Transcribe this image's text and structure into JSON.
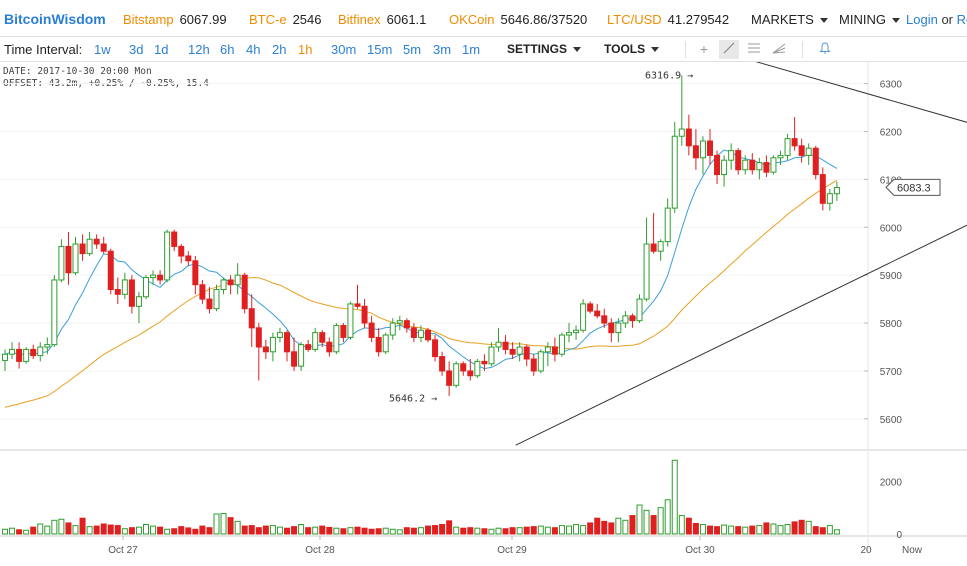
{
  "header": {
    "brand": "BitcoinWisdom",
    "exchanges": [
      {
        "name": "Bitstamp",
        "price": "6067.99"
      },
      {
        "name": "BTC-e",
        "price": "2546"
      },
      {
        "name": "Bitfinex",
        "price": "6061.1"
      },
      {
        "name": "OKCoin",
        "price": "5646.86/37520"
      },
      {
        "name": "LTC/USD",
        "price": "41.279542"
      }
    ],
    "markets_label": "MARKETS",
    "mining_label": "MINING",
    "login_label": "Login",
    "or_label": "or",
    "register_label": "Re"
  },
  "toolbar": {
    "interval_label": "Time Interval:",
    "intervals": [
      "1w",
      "3d",
      "1d",
      "12h",
      "6h",
      "4h",
      "2h",
      "1h",
      "30m",
      "15m",
      "5m",
      "3m",
      "1m"
    ],
    "active_interval": "1h",
    "settings_label": "SETTINGS",
    "tools_label": "TOOLS",
    "icons": [
      "crosshair-icon",
      "line-tool-icon",
      "fib-lines-icon",
      "trend-fan-icon",
      "alert-bell-icon"
    ]
  },
  "info": {
    "date_line": "DATE: 2017-10-30 20:00 Mon",
    "offset_line": "OFFSET: 43.2m, +0.25% / -0.25%, 15.4"
  },
  "colors": {
    "up": "#2f9e2f",
    "down": "#e02020",
    "ma_fast": "#3aa0d8",
    "ma_slow": "#e8a020",
    "trend": "#333333",
    "accent": "#2a7fd4",
    "exchange": "#f08c00"
  },
  "chart_data": {
    "type": "candlestick",
    "price_axis": {
      "ticks": [
        "5600",
        "5700",
        "5800",
        "5900",
        "6000",
        "6100",
        "6200",
        "6300"
      ],
      "range": [
        5535,
        6345
      ]
    },
    "volume_axis": {
      "ticks": [
        "0",
        "2000"
      ],
      "range": [
        0,
        3000
      ]
    },
    "time_axis": {
      "labels": [
        "Oct 27",
        "Oct 28",
        "Oct 29",
        "Oct 30",
        "20",
        "Now"
      ]
    },
    "last_price": "6083.3",
    "annotations": [
      {
        "text": "6316.9",
        "price": 6316.9
      },
      {
        "text": "5646.2",
        "price": 5646.2
      }
    ],
    "trendlines": [
      {
        "from": [
          0,
          6380
        ],
        "to": [
          1,
          6195
        ],
        "index_from": 100,
        "index_to": 141
      },
      {
        "from": [
          0,
          5545
        ],
        "to": [
          1,
          6045
        ],
        "index_from": 74,
        "index_to": 141
      }
    ],
    "candles_desc": "hourly OHLC from 2017-10-26 to 2017-10-30 20:00",
    "candles": [
      [
        5722,
        5745,
        5700,
        5735
      ],
      [
        5735,
        5760,
        5725,
        5745
      ],
      [
        5745,
        5760,
        5705,
        5720
      ],
      [
        5720,
        5750,
        5715,
        5745
      ],
      [
        5745,
        5755,
        5725,
        5732
      ],
      [
        5732,
        5760,
        5720,
        5750
      ],
      [
        5750,
        5770,
        5735,
        5755
      ],
      [
        5755,
        5900,
        5750,
        5890
      ],
      [
        5890,
        5975,
        5885,
        5960
      ],
      [
        5960,
        5990,
        5880,
        5905
      ],
      [
        5905,
        5980,
        5900,
        5965
      ],
      [
        5965,
        5985,
        5930,
        5945
      ],
      [
        5945,
        5990,
        5940,
        5975
      ],
      [
        5975,
        5985,
        5955,
        5965
      ],
      [
        5965,
        5980,
        5945,
        5950
      ],
      [
        5950,
        5955,
        5860,
        5870
      ],
      [
        5870,
        5895,
        5840,
        5860
      ],
      [
        5860,
        5905,
        5850,
        5890
      ],
      [
        5890,
        5900,
        5820,
        5835
      ],
      [
        5835,
        5865,
        5800,
        5855
      ],
      [
        5855,
        5900,
        5850,
        5895
      ],
      [
        5895,
        5910,
        5880,
        5900
      ],
      [
        5900,
        5910,
        5880,
        5890
      ],
      [
        5890,
        5995,
        5885,
        5990
      ],
      [
        5990,
        5995,
        5950,
        5960
      ],
      [
        5960,
        5965,
        5925,
        5940
      ],
      [
        5940,
        5950,
        5920,
        5930
      ],
      [
        5930,
        5940,
        5860,
        5880
      ],
      [
        5880,
        5890,
        5840,
        5850
      ],
      [
        5850,
        5875,
        5820,
        5830
      ],
      [
        5830,
        5880,
        5825,
        5870
      ],
      [
        5870,
        5895,
        5860,
        5890
      ],
      [
        5890,
        5900,
        5860,
        5880
      ],
      [
        5880,
        5925,
        5860,
        5900
      ],
      [
        5900,
        5905,
        5820,
        5830
      ],
      [
        5830,
        5860,
        5750,
        5790
      ],
      [
        5790,
        5800,
        5680,
        5750
      ],
      [
        5750,
        5765,
        5725,
        5740
      ],
      [
        5740,
        5780,
        5720,
        5770
      ],
      [
        5770,
        5790,
        5760,
        5780
      ],
      [
        5780,
        5785,
        5720,
        5740
      ],
      [
        5740,
        5770,
        5700,
        5710
      ],
      [
        5710,
        5760,
        5700,
        5755
      ],
      [
        5755,
        5765,
        5740,
        5745
      ],
      [
        5745,
        5790,
        5740,
        5780
      ],
      [
        5780,
        5785,
        5750,
        5760
      ],
      [
        5760,
        5770,
        5730,
        5740
      ],
      [
        5740,
        5800,
        5735,
        5795
      ],
      [
        5795,
        5800,
        5760,
        5770
      ],
      [
        5770,
        5845,
        5765,
        5840
      ],
      [
        5840,
        5880,
        5830,
        5835
      ],
      [
        5835,
        5850,
        5790,
        5800
      ],
      [
        5800,
        5815,
        5760,
        5770
      ],
      [
        5770,
        5790,
        5730,
        5740
      ],
      [
        5740,
        5780,
        5735,
        5775
      ],
      [
        5775,
        5810,
        5765,
        5800
      ],
      [
        5800,
        5815,
        5785,
        5805
      ],
      [
        5805,
        5810,
        5780,
        5790
      ],
      [
        5790,
        5800,
        5760,
        5770
      ],
      [
        5770,
        5795,
        5760,
        5785
      ],
      [
        5785,
        5790,
        5760,
        5765
      ],
      [
        5765,
        5775,
        5720,
        5730
      ],
      [
        5730,
        5740,
        5690,
        5700
      ],
      [
        5700,
        5720,
        5648,
        5670
      ],
      [
        5670,
        5720,
        5665,
        5715
      ],
      [
        5715,
        5720,
        5690,
        5700
      ],
      [
        5700,
        5725,
        5680,
        5690
      ],
      [
        5690,
        5725,
        5685,
        5720
      ],
      [
        5720,
        5735,
        5700,
        5715
      ],
      [
        5715,
        5760,
        5710,
        5750
      ],
      [
        5750,
        5790,
        5740,
        5760
      ],
      [
        5760,
        5775,
        5735,
        5745
      ],
      [
        5745,
        5760,
        5725,
        5735
      ],
      [
        5735,
        5760,
        5720,
        5750
      ],
      [
        5750,
        5755,
        5710,
        5725
      ],
      [
        5725,
        5735,
        5690,
        5700
      ],
      [
        5700,
        5745,
        5695,
        5740
      ],
      [
        5740,
        5760,
        5710,
        5750
      ],
      [
        5750,
        5770,
        5720,
        5735
      ],
      [
        5735,
        5780,
        5730,
        5775
      ],
      [
        5775,
        5800,
        5760,
        5780
      ],
      [
        5780,
        5795,
        5765,
        5785
      ],
      [
        5785,
        5850,
        5780,
        5840
      ],
      [
        5840,
        5845,
        5820,
        5825
      ],
      [
        5825,
        5840,
        5810,
        5815
      ],
      [
        5815,
        5830,
        5790,
        5800
      ],
      [
        5800,
        5810,
        5760,
        5780
      ],
      [
        5780,
        5810,
        5760,
        5800
      ],
      [
        5800,
        5825,
        5790,
        5815
      ],
      [
        5815,
        5820,
        5790,
        5805
      ],
      [
        5805,
        5860,
        5800,
        5850
      ],
      [
        5850,
        6020,
        5845,
        5965
      ],
      [
        5965,
        6030,
        5945,
        5950
      ],
      [
        5950,
        5975,
        5930,
        5970
      ],
      [
        5970,
        6060,
        5960,
        6040
      ],
      [
        6040,
        6220,
        6030,
        6190
      ],
      [
        6190,
        6317,
        6170,
        6205
      ],
      [
        6205,
        6235,
        6150,
        6170
      ],
      [
        6170,
        6205,
        6120,
        6145
      ],
      [
        6145,
        6190,
        6110,
        6180
      ],
      [
        6180,
        6205,
        6130,
        6150
      ],
      [
        6150,
        6160,
        6090,
        6110
      ],
      [
        6110,
        6150,
        6085,
        6140
      ],
      [
        6140,
        6175,
        6120,
        6160
      ],
      [
        6160,
        6165,
        6110,
        6120
      ],
      [
        6120,
        6150,
        6110,
        6140
      ],
      [
        6140,
        6155,
        6110,
        6120
      ],
      [
        6120,
        6145,
        6100,
        6135
      ],
      [
        6135,
        6150,
        6105,
        6115
      ],
      [
        6115,
        6150,
        6110,
        6145
      ],
      [
        6145,
        6160,
        6130,
        6150
      ],
      [
        6150,
        6195,
        6140,
        6185
      ],
      [
        6185,
        6230,
        6160,
        6170
      ],
      [
        6170,
        6185,
        6135,
        6150
      ],
      [
        6150,
        6175,
        6130,
        6165
      ],
      [
        6165,
        6170,
        6100,
        6110
      ],
      [
        6110,
        6125,
        6035,
        6050
      ],
      [
        6050,
        6080,
        6035,
        6070
      ],
      [
        6070,
        6095,
        6055,
        6083
      ]
    ],
    "volume": [
      180,
      220,
      160,
      140,
      260,
      380,
      300,
      520,
      560,
      420,
      320,
      600,
      280,
      300,
      380,
      340,
      320,
      200,
      240,
      260,
      360,
      300,
      260,
      180,
      200,
      280,
      230,
      180,
      300,
      240,
      760,
      780,
      620,
      480,
      300,
      320,
      240,
      300,
      320,
      260,
      220,
      280,
      360,
      240,
      260,
      300,
      250,
      220,
      200,
      240,
      260,
      220,
      180,
      200,
      220,
      180,
      160,
      240,
      220,
      240,
      300,
      320,
      360,
      500,
      260,
      220,
      240,
      220,
      200,
      180,
      220,
      200,
      240,
      240,
      260,
      280,
      300,
      260,
      240,
      320,
      300,
      360,
      320,
      420,
      600,
      480,
      420,
      600,
      520,
      700,
      1100,
      900,
      700,
      1000,
      1300,
      2800,
      700,
      600,
      400,
      360,
      300,
      280,
      340,
      300,
      280,
      260,
      300,
      320,
      420,
      380,
      320,
      360,
      460,
      520,
      480,
      280,
      240,
      320,
      160
    ]
  }
}
